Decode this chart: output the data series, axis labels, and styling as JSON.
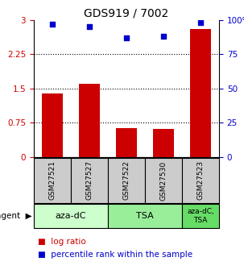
{
  "title": "GDS919 / 7002",
  "samples": [
    "GSM27521",
    "GSM27527",
    "GSM27522",
    "GSM27530",
    "GSM27523"
  ],
  "log_ratio": [
    1.4,
    1.6,
    0.63,
    0.62,
    2.8
  ],
  "percentile_rank": [
    97,
    95,
    87,
    88,
    98
  ],
  "bar_color": "#cc0000",
  "square_color": "#0000cc",
  "ylim_left": [
    0,
    3
  ],
  "ylim_right": [
    0,
    100
  ],
  "yticks_left": [
    0,
    0.75,
    1.5,
    2.25,
    3
  ],
  "yticks_right": [
    0,
    25,
    50,
    75,
    100
  ],
  "ytick_labels_left": [
    "0",
    "0.75",
    "1.5",
    "2.25",
    "3"
  ],
  "ytick_labels_right": [
    "0",
    "25",
    "50",
    "75",
    "100%"
  ],
  "agent_groups": [
    {
      "label": "aza-dC",
      "start": 0,
      "end": 2,
      "color": "#ccffcc"
    },
    {
      "label": "TSA",
      "start": 2,
      "end": 4,
      "color": "#99ee99"
    },
    {
      "label": "aza-dC,\nTSA",
      "start": 4,
      "end": 5,
      "color": "#66dd66"
    }
  ],
  "sample_box_color": "#cccccc",
  "legend_bar_color": "#cc0000",
  "legend_sq_color": "#0000cc",
  "background_color": "#ffffff",
  "title_fontsize": 10,
  "tick_fontsize": 7.5,
  "sample_fontsize": 6.5,
  "agent_fontsize": 8,
  "legend_fontsize": 7.5,
  "bar_width": 0.55
}
